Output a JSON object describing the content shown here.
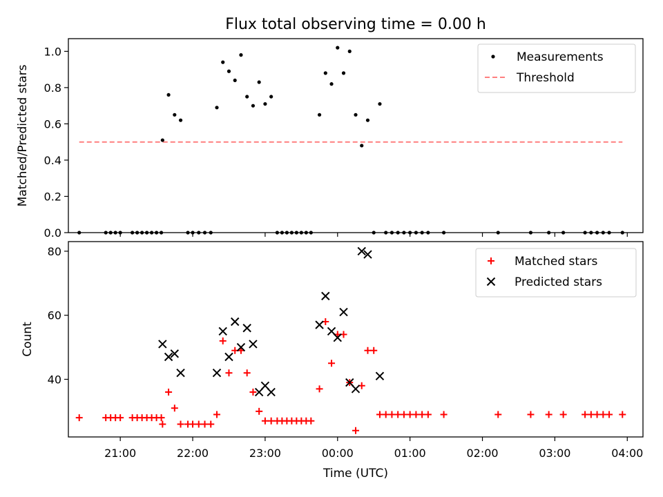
{
  "figure": {
    "title": "Flux total observing time = 0.00 h",
    "xlabel": "Time (UTC)",
    "x_ticks": [
      "21:00",
      "22:00",
      "23:00",
      "00:00",
      "01:00",
      "02:00",
      "03:00",
      "04:00"
    ]
  },
  "chart_data": [
    {
      "type": "scatter",
      "title": "Flux total observing time = 0.00 h",
      "xlabel": "",
      "ylabel": "Matched/Predicted stars",
      "xlim": [
        "20:17",
        "04:13"
      ],
      "ylim": [
        0,
        1.07
      ],
      "y_ticks": [
        "0.0",
        "0.2",
        "0.4",
        "0.6",
        "0.8",
        "1.0"
      ],
      "legend_position": "top-right",
      "series": [
        {
          "name": "Measurements",
          "marker": "dot",
          "color": "#000000",
          "points": [
            [
              "20:26",
              0
            ],
            [
              "20:48",
              0
            ],
            [
              "20:52",
              0
            ],
            [
              "20:56",
              0
            ],
            [
              "21:00",
              0
            ],
            [
              "21:10",
              0
            ],
            [
              "21:14",
              0
            ],
            [
              "21:18",
              0
            ],
            [
              "21:22",
              0
            ],
            [
              "21:26",
              0
            ],
            [
              "21:30",
              0
            ],
            [
              "21:34",
              0
            ],
            [
              "21:35",
              0.51
            ],
            [
              "21:40",
              0.76
            ],
            [
              "21:45",
              0.65
            ],
            [
              "21:50",
              0.62
            ],
            [
              "21:56",
              0
            ],
            [
              "22:00",
              0
            ],
            [
              "22:05",
              0
            ],
            [
              "22:10",
              0
            ],
            [
              "22:15",
              0
            ],
            [
              "22:20",
              0.69
            ],
            [
              "22:25",
              0.94
            ],
            [
              "22:30",
              0.89
            ],
            [
              "22:35",
              0.84
            ],
            [
              "22:40",
              0.98
            ],
            [
              "22:45",
              0.75
            ],
            [
              "22:50",
              0.7
            ],
            [
              "22:55",
              0.83
            ],
            [
              "23:00",
              0.71
            ],
            [
              "23:05",
              0.75
            ],
            [
              "23:10",
              0
            ],
            [
              "23:14",
              0
            ],
            [
              "23:18",
              0
            ],
            [
              "23:22",
              0
            ],
            [
              "23:26",
              0
            ],
            [
              "23:30",
              0
            ],
            [
              "23:34",
              0
            ],
            [
              "23:38",
              0
            ],
            [
              "23:45",
              0.65
            ],
            [
              "23:50",
              0.88
            ],
            [
              "23:55",
              0.82
            ],
            [
              "00:00",
              1.02
            ],
            [
              "00:05",
              0.88
            ],
            [
              "00:10",
              1.0
            ],
            [
              "00:15",
              0.65
            ],
            [
              "00:20",
              0.48
            ],
            [
              "00:25",
              0.62
            ],
            [
              "00:30",
              0
            ],
            [
              "00:35",
              0.71
            ],
            [
              "00:40",
              0
            ],
            [
              "00:45",
              0
            ],
            [
              "00:50",
              0
            ],
            [
              "00:55",
              0
            ],
            [
              "01:00",
              0
            ],
            [
              "01:05",
              0
            ],
            [
              "01:10",
              0
            ],
            [
              "01:15",
              0
            ],
            [
              "01:28",
              0
            ],
            [
              "02:13",
              0
            ],
            [
              "02:40",
              0
            ],
            [
              "02:55",
              0
            ],
            [
              "03:07",
              0
            ],
            [
              "03:25",
              0
            ],
            [
              "03:30",
              0
            ],
            [
              "03:35",
              0
            ],
            [
              "03:40",
              0
            ],
            [
              "03:45",
              0
            ],
            [
              "03:56",
              0
            ]
          ]
        },
        {
          "name": "Threshold",
          "type": "line",
          "style": "dashed",
          "color": "#ff7f7f",
          "points": [
            [
              "20:26",
              0.5
            ],
            [
              "03:56",
              0.5
            ]
          ]
        }
      ]
    },
    {
      "type": "scatter",
      "xlabel": "Time (UTC)",
      "ylabel": "Count",
      "xlim": [
        "20:17",
        "04:13"
      ],
      "ylim": [
        22,
        83
      ],
      "y_ticks": [
        "40",
        "60",
        "80"
      ],
      "legend_position": "top-right",
      "series": [
        {
          "name": "Matched stars",
          "marker": "plus",
          "color": "#ff0000",
          "points": [
            [
              "20:26",
              28
            ],
            [
              "20:48",
              28
            ],
            [
              "20:52",
              28
            ],
            [
              "20:56",
              28
            ],
            [
              "21:00",
              28
            ],
            [
              "21:10",
              28
            ],
            [
              "21:14",
              28
            ],
            [
              "21:18",
              28
            ],
            [
              "21:22",
              28
            ],
            [
              "21:26",
              28
            ],
            [
              "21:30",
              28
            ],
            [
              "21:34",
              28
            ],
            [
              "21:35",
              26
            ],
            [
              "21:40",
              36
            ],
            [
              "21:45",
              31
            ],
            [
              "21:50",
              26
            ],
            [
              "21:56",
              26
            ],
            [
              "22:00",
              26
            ],
            [
              "22:05",
              26
            ],
            [
              "22:10",
              26
            ],
            [
              "22:15",
              26
            ],
            [
              "22:20",
              29
            ],
            [
              "22:25",
              52
            ],
            [
              "22:30",
              42
            ],
            [
              "22:35",
              49
            ],
            [
              "22:40",
              49
            ],
            [
              "22:45",
              42
            ],
            [
              "22:50",
              36
            ],
            [
              "22:55",
              30
            ],
            [
              "23:00",
              27
            ],
            [
              "23:05",
              27
            ],
            [
              "23:10",
              27
            ],
            [
              "23:14",
              27
            ],
            [
              "23:18",
              27
            ],
            [
              "23:22",
              27
            ],
            [
              "23:26",
              27
            ],
            [
              "23:30",
              27
            ],
            [
              "23:34",
              27
            ],
            [
              "23:38",
              27
            ],
            [
              "23:45",
              37
            ],
            [
              "23:50",
              58
            ],
            [
              "23:55",
              45
            ],
            [
              "00:00",
              54
            ],
            [
              "00:05",
              54
            ],
            [
              "00:10",
              39
            ],
            [
              "00:15",
              24
            ],
            [
              "00:20",
              38
            ],
            [
              "00:25",
              49
            ],
            [
              "00:30",
              49
            ],
            [
              "00:35",
              29
            ],
            [
              "00:40",
              29
            ],
            [
              "00:45",
              29
            ],
            [
              "00:50",
              29
            ],
            [
              "00:55",
              29
            ],
            [
              "01:00",
              29
            ],
            [
              "01:05",
              29
            ],
            [
              "01:10",
              29
            ],
            [
              "01:15",
              29
            ],
            [
              "01:28",
              29
            ],
            [
              "02:13",
              29
            ],
            [
              "02:40",
              29
            ],
            [
              "02:55",
              29
            ],
            [
              "03:07",
              29
            ],
            [
              "03:25",
              29
            ],
            [
              "03:30",
              29
            ],
            [
              "03:35",
              29
            ],
            [
              "03:40",
              29
            ],
            [
              "03:45",
              29
            ],
            [
              "03:56",
              29
            ]
          ]
        },
        {
          "name": "Predicted stars",
          "marker": "x",
          "color": "#000000",
          "points": [
            [
              "21:35",
              51
            ],
            [
              "21:40",
              47
            ],
            [
              "21:45",
              48
            ],
            [
              "21:50",
              42
            ],
            [
              "22:20",
              42
            ],
            [
              "22:25",
              55
            ],
            [
              "22:30",
              47
            ],
            [
              "22:35",
              58
            ],
            [
              "22:40",
              50
            ],
            [
              "22:45",
              56
            ],
            [
              "22:50",
              51
            ],
            [
              "22:55",
              36
            ],
            [
              "23:00",
              38
            ],
            [
              "23:05",
              36
            ],
            [
              "23:45",
              57
            ],
            [
              "23:50",
              66
            ],
            [
              "23:55",
              55
            ],
            [
              "00:00",
              53
            ],
            [
              "00:05",
              61
            ],
            [
              "00:10",
              39
            ],
            [
              "00:15",
              37
            ],
            [
              "00:20",
              80
            ],
            [
              "00:25",
              79
            ],
            [
              "00:35",
              41
            ]
          ]
        }
      ]
    }
  ]
}
